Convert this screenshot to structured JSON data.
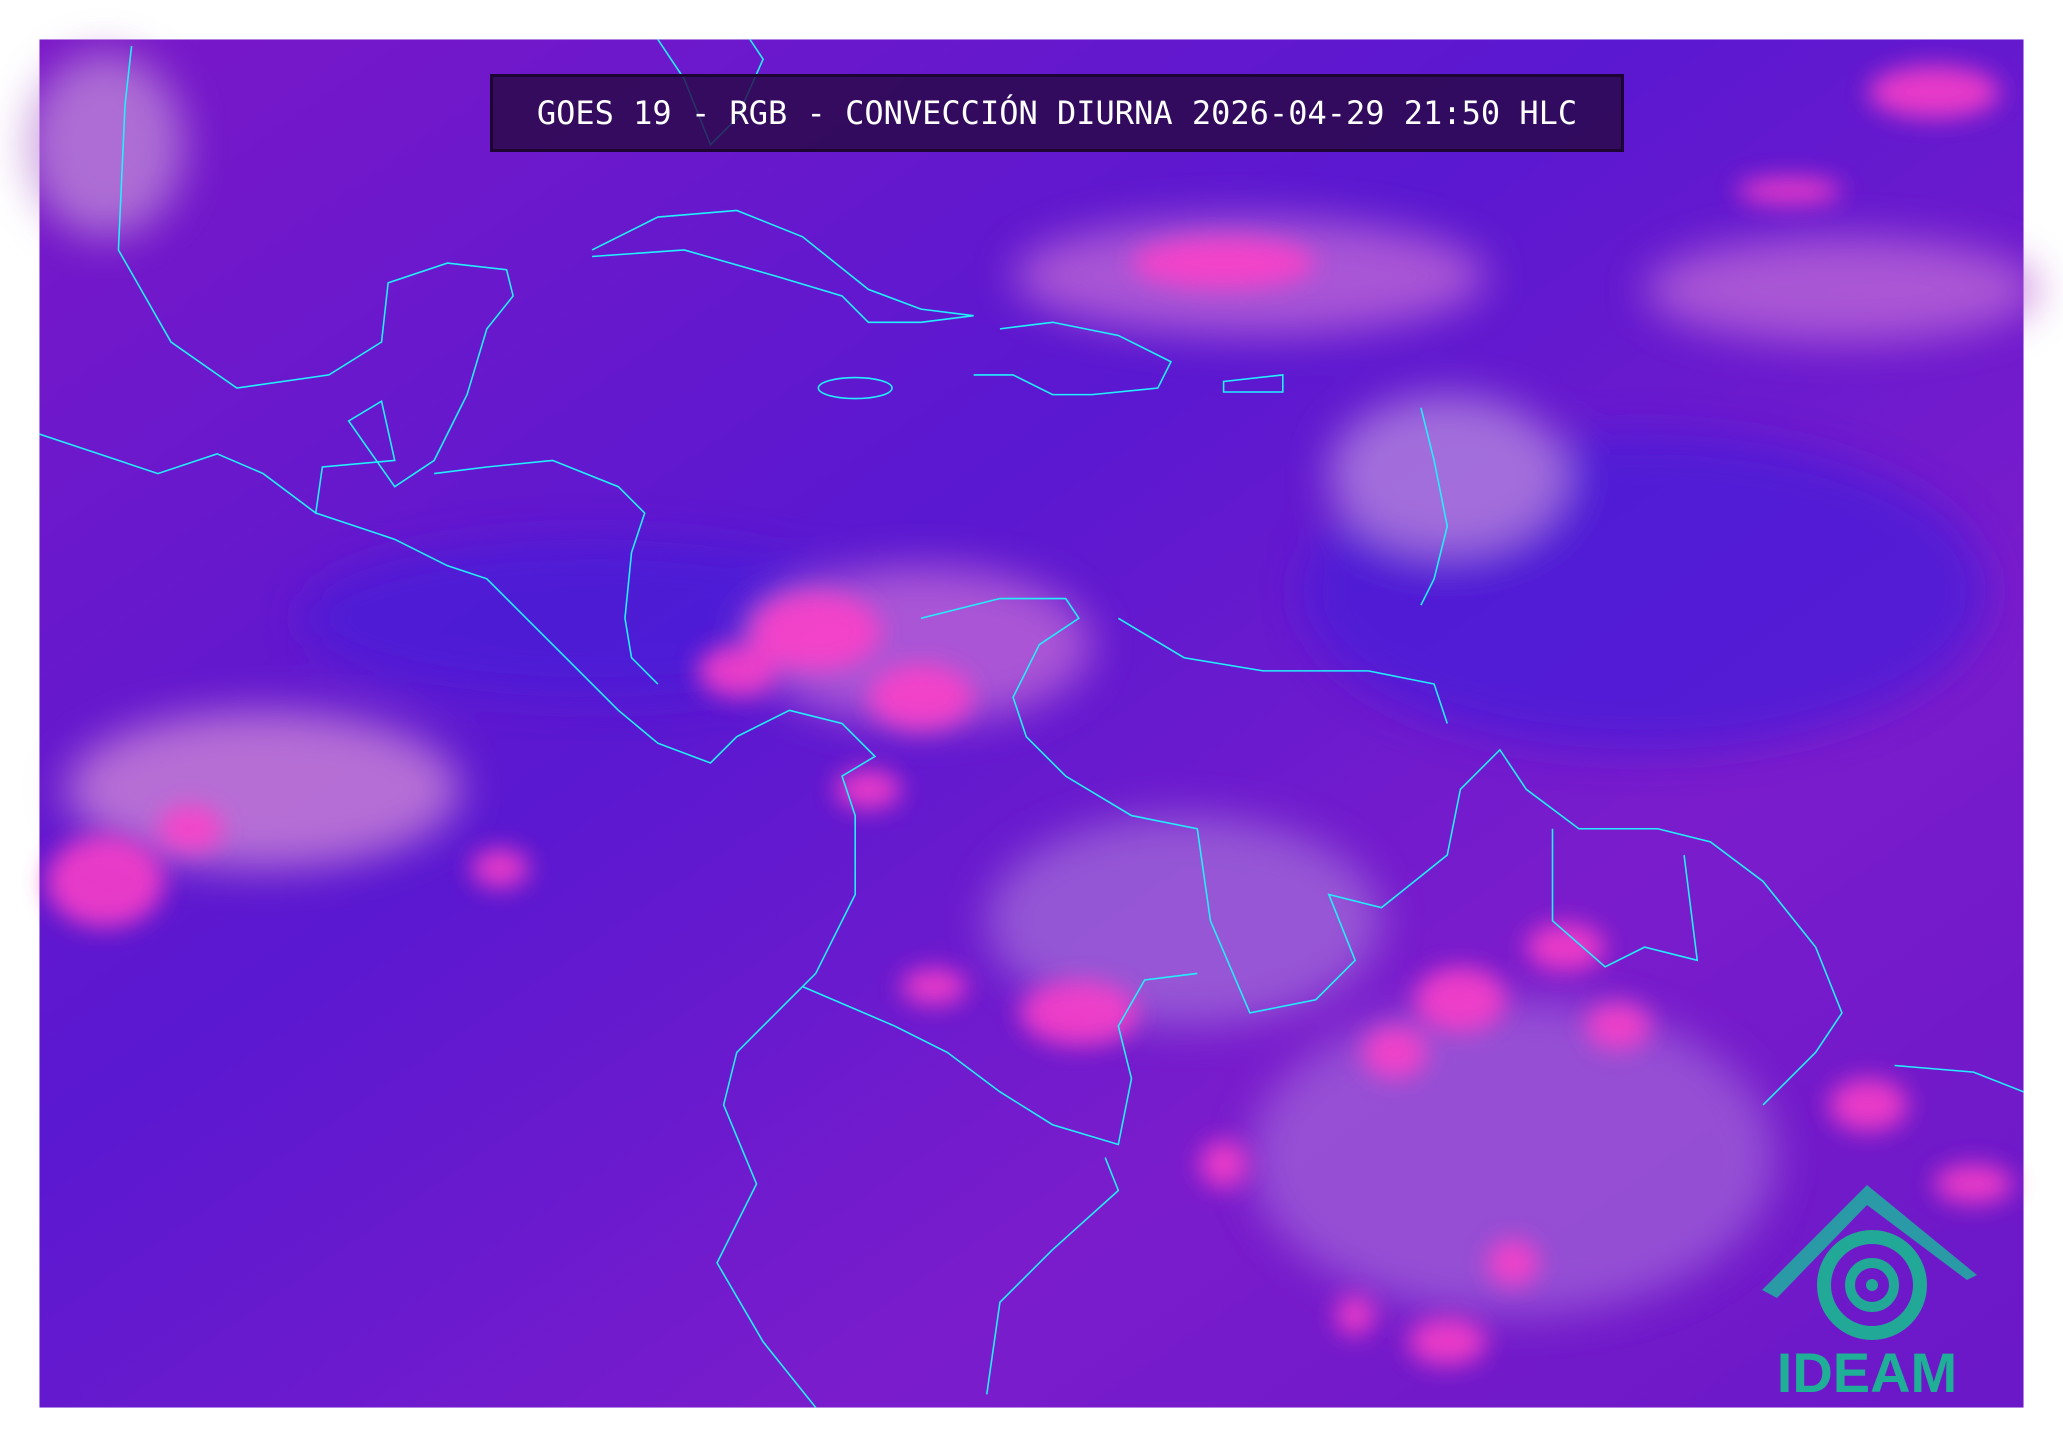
{
  "title": "GOES 19 - RGB - CONVECCIÓN DIURNA 2026-04-29 21:50 HLC",
  "logo": {
    "text": "IDEAM",
    "color": "#22a896"
  },
  "colors": {
    "background": "#6a1ccc",
    "clouds": "#ff3fc8",
    "coastline": "#22f0ff",
    "title_box": "#2a0848"
  }
}
